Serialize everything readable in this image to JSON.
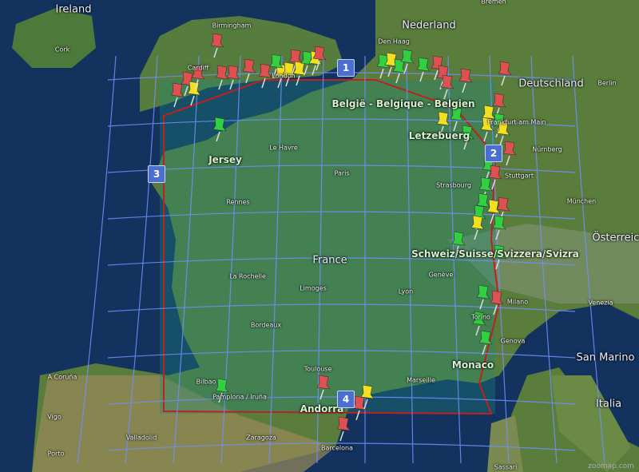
{
  "map": {
    "countries": [
      "Ireland",
      "Nederland",
      "Deutschland",
      "België - Belgique - Belgien",
      "Letzebuerg",
      "Jersey",
      "France",
      "Schweiz/Suisse/Svizzera/Svizra",
      "Österreich",
      "Monaco",
      "Italia",
      "San Marino",
      "Andorra"
    ],
    "cities": [
      "Cork",
      "Birmingham",
      "Cardiff",
      "London",
      "Den Haag",
      "Bremen",
      "Berlin",
      "Frankfurt am Main",
      "Nürnberg",
      "Stuttgart",
      "Strasbourg",
      "München",
      "Le Havre",
      "Paris",
      "Rennes",
      "La Rochelle",
      "Limoges",
      "Lyon",
      "Genève",
      "Milano",
      "Venezia",
      "Torino",
      "Genova",
      "Bordeaux",
      "Toulouse",
      "Marseille",
      "A Coruña",
      "Vigo",
      "Porto",
      "Bilbao",
      "Pamplona / Iruña",
      "Valladolid",
      "Zaragoza",
      "Barcelona",
      "Sassari"
    ],
    "grid_markers": [
      "1",
      "2",
      "3",
      "4"
    ],
    "pin_colors": {
      "red": "#e05050",
      "yellow": "#f0e020",
      "green": "#30d040"
    },
    "boundary_color": "#c02020",
    "grid_color": "#7090ff",
    "overlay_color": "#1a8a7a",
    "watermark": "zoomap.com"
  }
}
